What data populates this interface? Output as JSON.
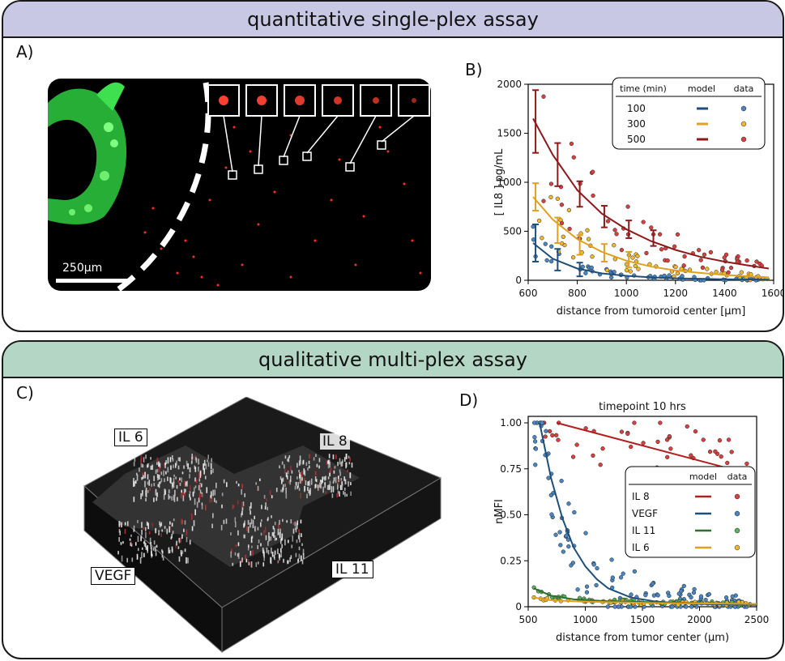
{
  "top": {
    "banner": "quantitative single-plex assay",
    "color": "#c8c8e4",
    "panel_a": {
      "label": "A)",
      "scale_bar": "250μm"
    },
    "panel_b": {
      "label": "B)",
      "chart_data": {
        "type": "line",
        "xlabel": "distance from tumoroid center [μm]",
        "ylabel": "[ IL8 ] pg/mL",
        "xlim": [
          600,
          1600
        ],
        "ylim": [
          0,
          2000
        ],
        "xticks": [
          600,
          800,
          1000,
          1200,
          1400,
          1600
        ],
        "yticks": [
          0,
          500,
          1000,
          1500,
          2000
        ],
        "legend": {
          "title_group": "time (min)",
          "title_model": "model",
          "title_data": "data",
          "placement": "top-right"
        },
        "series": [
          {
            "name": "100",
            "color": "#1f4e79",
            "marker_color": "#4a86c0",
            "model_x": [
              620,
              700,
              800,
              900,
              1000,
              1100,
              1200,
              1300,
              1400,
              1500,
              1580
            ],
            "model_y": [
              380,
              220,
              120,
              70,
              45,
              30,
              20,
              15,
              10,
              8,
              6
            ],
            "errorbars": [
              {
                "x": 630,
                "y": 380,
                "err": 190
              },
              {
                "x": 720,
                "y": 210,
                "err": 110
              },
              {
                "x": 810,
                "y": 110,
                "err": 70
              }
            ]
          },
          {
            "name": "300",
            "color": "#e0a020",
            "marker_color": "#f0b830",
            "model_x": [
              620,
              700,
              800,
              900,
              1000,
              1100,
              1200,
              1300,
              1400,
              1500,
              1580
            ],
            "model_y": [
              850,
              620,
              420,
              290,
              200,
              140,
              100,
              75,
              55,
              40,
              30
            ],
            "errorbars": [
              {
                "x": 630,
                "y": 850,
                "err": 140
              },
              {
                "x": 720,
                "y": 510,
                "err": 130
              },
              {
                "x": 810,
                "y": 360,
                "err": 100
              },
              {
                "x": 910,
                "y": 280,
                "err": 90
              },
              {
                "x": 1010,
                "y": 210,
                "err": 80
              }
            ]
          },
          {
            "name": "500",
            "color": "#8c1a1a",
            "marker_color": "#d84040",
            "model_x": [
              620,
              700,
              800,
              900,
              1000,
              1100,
              1200,
              1300,
              1400,
              1500,
              1580
            ],
            "model_y": [
              1650,
              1280,
              920,
              680,
              520,
              400,
              310,
              240,
              190,
              150,
              120
            ],
            "errorbars": [
              {
                "x": 630,
                "y": 1620,
                "err": 320
              },
              {
                "x": 720,
                "y": 1180,
                "err": 220
              },
              {
                "x": 810,
                "y": 880,
                "err": 130
              },
              {
                "x": 910,
                "y": 650,
                "err": 110
              },
              {
                "x": 1010,
                "y": 520,
                "err": 90
              },
              {
                "x": 1110,
                "y": 430,
                "err": 80
              }
            ]
          }
        ]
      }
    }
  },
  "bottom": {
    "banner": "qualitative multi-plex assay",
    "color": "#b4d6c4",
    "panel_c": {
      "label": "C)",
      "labels": [
        "IL 6",
        "IL 8",
        "VEGF",
        "IL 11"
      ]
    },
    "panel_d": {
      "label": "D)",
      "chart_data": {
        "type": "line",
        "title": "timepoint  10 hrs",
        "xlabel": "distance from tumor center (μm)",
        "ylabel": "nMFI",
        "xlim": [
          500,
          2500
        ],
        "ylim": [
          0,
          1.0
        ],
        "xticks": [
          500,
          1000,
          1500,
          2000,
          2500
        ],
        "ytick_labels": [
          "0",
          "0.25",
          "0.50",
          "0.75",
          "1.00"
        ],
        "yticks": [
          0,
          0.25,
          0.5,
          0.75,
          1.0
        ],
        "legend": {
          "title_model": "model",
          "title_data": "data",
          "placement": "right"
        },
        "series": [
          {
            "name": "IL 8",
            "color": "#b02020",
            "marker_color": "#d84040",
            "model_x": [
              750,
              2450
            ],
            "model_y": [
              1.0,
              0.72
            ]
          },
          {
            "name": "VEGF",
            "color": "#1f4e79",
            "marker_color": "#4a86c0",
            "model_x": [
              600,
              700,
              800,
              900,
              1000,
              1100,
              1200,
              1400,
              1600,
              1800,
              2000,
              2500
            ],
            "model_y": [
              1.0,
              0.7,
              0.48,
              0.32,
              0.22,
              0.15,
              0.1,
              0.05,
              0.03,
              0.02,
              0.015,
              0.01
            ]
          },
          {
            "name": "IL 11",
            "color": "#2e6e2e",
            "marker_color": "#5ab35a",
            "model_x": [
              550,
              700,
              900,
              1200,
              1600,
              2000,
              2500
            ],
            "model_y": [
              0.1,
              0.06,
              0.04,
              0.03,
              0.025,
              0.02,
              0.015
            ]
          },
          {
            "name": "IL 6",
            "color": "#e0a020",
            "marker_color": "#f0b830",
            "model_x": [
              550,
              700,
              900,
              1200,
              1600,
              2000,
              2500
            ],
            "model_y": [
              0.05,
              0.035,
              0.03,
              0.025,
              0.02,
              0.018,
              0.015
            ]
          }
        ]
      }
    }
  }
}
